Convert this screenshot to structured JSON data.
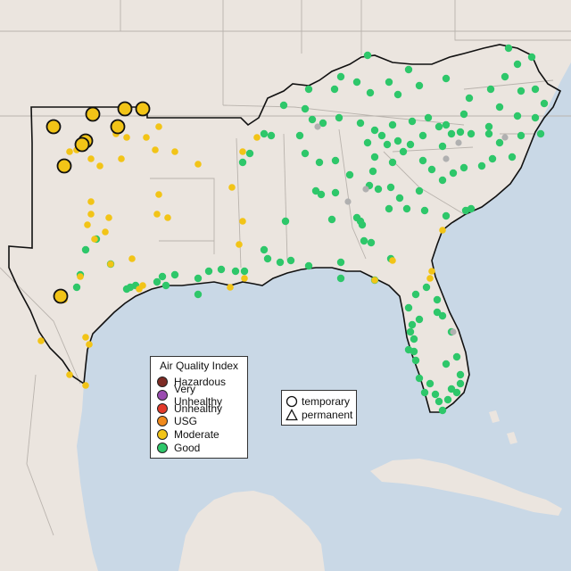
{
  "colors": {
    "ocean": "#c9d8e6",
    "land": "#ebe5df",
    "state_lines": "#b9b3ad",
    "region_outline": "#111111",
    "good": "#2ec76a",
    "moderate": "#f2c417",
    "usg": "#f08a1c",
    "unhealthy": "#e33a2a",
    "very_unhealthy": "#9a4bb0",
    "hazardous": "#7d2b24",
    "monitor_stroke": "#222222",
    "gray_site": "#b0b0b0"
  },
  "legend": {
    "title": "Air Quality Index",
    "categories": [
      {
        "label": "Hazardous",
        "color": "#7d2b24"
      },
      {
        "label": "Very Unhealthy",
        "color": "#9a4bb0"
      },
      {
        "label": "Unhealthy",
        "color": "#e33a2a"
      },
      {
        "label": "USG",
        "color": "#f08a1c"
      },
      {
        "label": "Moderate",
        "color": "#f2c417"
      },
      {
        "label": "Good",
        "color": "#2ec76a"
      }
    ]
  },
  "shape_legend": {
    "temporary": "temporary",
    "permanent": "permanent"
  }
}
